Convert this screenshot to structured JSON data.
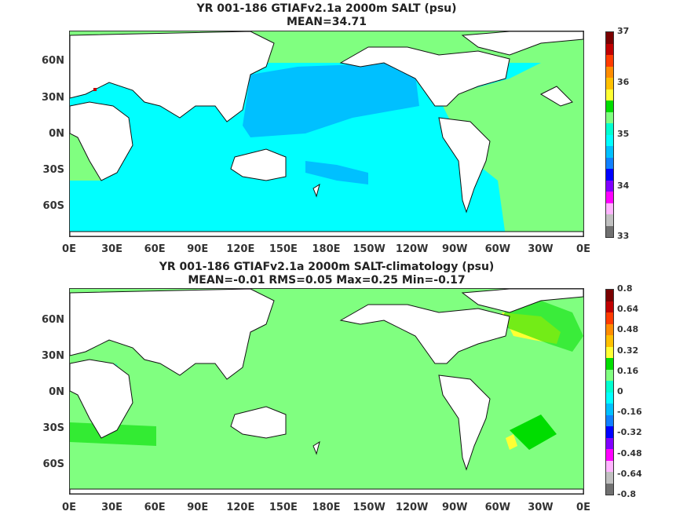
{
  "top": {
    "title_line1": "YR 001-186 GTIAFv2.1a 2000m SALT (psu)",
    "title_line2": "MEAN=34.71",
    "colorbar": {
      "labels": [
        "37",
        "36",
        "35",
        "34",
        "33"
      ],
      "colors": [
        "#7a0000",
        "#c00000",
        "#ff3b00",
        "#ff8c00",
        "#ffc000",
        "#ffff33",
        "#00dd00",
        "#80ff80",
        "#00ffd0",
        "#00ffff",
        "#00c0ff",
        "#1080ff",
        "#0000ff",
        "#8000ff",
        "#ff00ff",
        "#ffb4ff",
        "#c0c0c0",
        "#707070"
      ]
    },
    "fills": {
      "pacific_north": "#00c0ff",
      "ocean_south": "#00ffff",
      "atlantic": "#80ff80",
      "arctic": "#80ff80"
    }
  },
  "bottom": {
    "title_line1": "YR 001-186 GTIAFv2.1a 2000m SALT-climatology (psu)",
    "title_line2": "MEAN=-0.01   RMS=0.05   Max=0.25   Min=-0.17",
    "colorbar": {
      "labels": [
        "0.8",
        "0.64",
        "0.48",
        "0.32",
        "0.16",
        "0",
        "-0.16",
        "-0.32",
        "-0.48",
        "-0.64",
        "-0.8"
      ],
      "colors": [
        "#7a0000",
        "#c00000",
        "#ff3b00",
        "#ff8c00",
        "#ffc000",
        "#ffff33",
        "#00dd00",
        "#80ff80",
        "#00ffd0",
        "#00ffff",
        "#00c0ff",
        "#1080ff",
        "#0000ff",
        "#8000ff",
        "#ff00ff",
        "#ffb4ff",
        "#c0c0c0",
        "#707070"
      ]
    },
    "fills": {
      "ocean": "#80ff80",
      "anomaly_pos": "#ffff33",
      "anomaly_green": "#00dd00",
      "anomaly_cyan": "#00ffd0"
    }
  },
  "axes": {
    "y_ticks": [
      "60N",
      "30N",
      "0N",
      "30S",
      "60S"
    ],
    "x_ticks": [
      "0E",
      "30E",
      "60E",
      "90E",
      "120E",
      "150E",
      "180E",
      "150W",
      "120W",
      "90W",
      "60W",
      "30W",
      "0E"
    ]
  }
}
